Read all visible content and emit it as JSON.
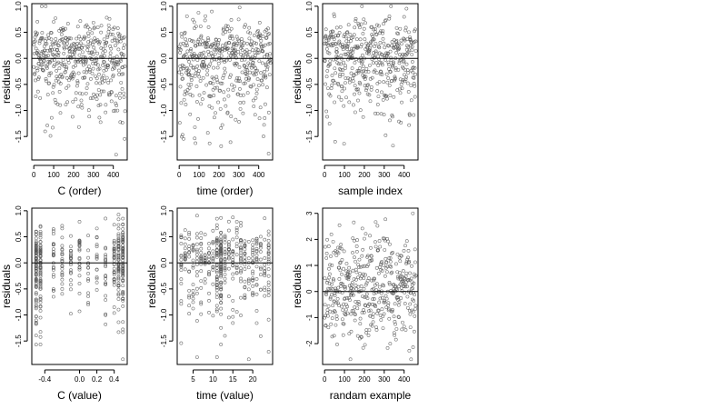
{
  "figure": {
    "layout": "2x3 grid of residual scatter plots",
    "marker": "open circle",
    "marker_color": "#555555",
    "reference_line": "horizontal line at residual 0"
  },
  "chart_data": [
    {
      "type": "scatter",
      "xlabel": "C (order)",
      "ylabel": "residuals",
      "xlim": [
        -10,
        470
      ],
      "ylim": [
        -1.95,
        1.05
      ],
      "xticks": [
        0,
        100,
        200,
        300,
        400
      ],
      "xtick_labels": [
        "0",
        "100",
        "200",
        "300",
        "400"
      ],
      "yticks": [
        1.0,
        0.5,
        0.0,
        -0.5,
        -1.0,
        -1.5
      ],
      "ytick_labels": [
        "1.0",
        "0.5",
        "0.0",
        "-0.5",
        "-1.0",
        "-1.5"
      ],
      "hline": 0,
      "x_pattern": "sequential index",
      "n_points": 460,
      "y_distribution": {
        "kind": "skewed",
        "range": [
          -1.85,
          1.0
        ]
      },
      "seed": 11
    },
    {
      "type": "scatter",
      "xlabel": "time (order)",
      "ylabel": "residuals",
      "xlim": [
        -10,
        470
      ],
      "ylim": [
        -1.95,
        1.05
      ],
      "xticks": [
        0,
        100,
        200,
        300,
        400
      ],
      "xtick_labels": [
        "0",
        "100",
        "200",
        "300",
        "400"
      ],
      "yticks": [
        1.0,
        0.5,
        0.0,
        -0.5,
        -1.0,
        -1.5
      ],
      "ytick_labels": [
        "1.0",
        "0.5",
        "0.0",
        "-0.5",
        "-1.0",
        "-1.5"
      ],
      "hline": 0,
      "x_pattern": "sequential index",
      "n_points": 460,
      "y_distribution": {
        "kind": "skewed",
        "range": [
          -1.85,
          1.0
        ]
      },
      "seed": 23
    },
    {
      "type": "scatter",
      "xlabel": "sample index",
      "ylabel": "residuals",
      "xlim": [
        -10,
        470
      ],
      "ylim": [
        -1.95,
        1.05
      ],
      "xticks": [
        0,
        100,
        200,
        300,
        400
      ],
      "xtick_labels": [
        "0",
        "100",
        "200",
        "300",
        "400"
      ],
      "yticks": [
        1.0,
        0.5,
        0.0,
        -0.5,
        -1.0,
        -1.5
      ],
      "ytick_labels": [
        "1.0",
        "0.5",
        "0.0",
        "-0.5",
        "-1.0",
        "-1.5"
      ],
      "hline": 0,
      "x_pattern": "sequential index",
      "n_points": 460,
      "y_distribution": {
        "kind": "skewed",
        "range": [
          -1.85,
          1.0
        ]
      },
      "seed": 37
    },
    {
      "type": "scatter",
      "xlabel": "C (value)",
      "ylabel": "residuals",
      "xlim": [
        -0.55,
        0.55
      ],
      "ylim": [
        -1.95,
        1.05
      ],
      "xticks": [
        -0.4,
        0.0,
        0.2,
        0.4
      ],
      "xtick_labels": [
        "-0.4",
        "0.0",
        "0.2",
        "0.4"
      ],
      "yticks": [
        1.0,
        0.5,
        0.0,
        -0.5,
        -1.0,
        -1.5
      ],
      "ytick_labels": [
        "1.0",
        "0.5",
        "0.0",
        "-0.5",
        "-1.0",
        "-1.5"
      ],
      "hline": 0,
      "x_pattern": "discrete values",
      "x_levels": [
        -0.5,
        -0.45,
        -0.3,
        -0.2,
        -0.1,
        0.0,
        0.1,
        0.2,
        0.3,
        0.4,
        0.45,
        0.5
      ],
      "x_level_weights": [
        4,
        3,
        1,
        1,
        1,
        1,
        1,
        1,
        1,
        2,
        3,
        3
      ],
      "n_points": 460,
      "y_distribution": {
        "kind": "skewed",
        "range": [
          -1.85,
          1.0
        ]
      },
      "seed": 41
    },
    {
      "type": "scatter",
      "xlabel": "time (value)",
      "ylabel": "residuals",
      "xlim": [
        1,
        25
      ],
      "ylim": [
        -1.95,
        1.05
      ],
      "xticks": [
        5,
        10,
        15,
        20
      ],
      "xtick_labels": [
        "5",
        "10",
        "15",
        "20"
      ],
      "yticks": [
        1.0,
        0.5,
        0.0,
        -0.5,
        -1.0,
        -1.5
      ],
      "ytick_labels": [
        "1.0",
        "0.5",
        "0.0",
        "-0.5",
        "-1.0",
        "-1.5"
      ],
      "hline": 0,
      "x_pattern": "discrete values",
      "x_levels": [
        2,
        3,
        4,
        5,
        6,
        7,
        8,
        9,
        10,
        11,
        12,
        13,
        14,
        15,
        16,
        17,
        18,
        19,
        20,
        21,
        22,
        23,
        24
      ],
      "x_level_weights": [
        2,
        1,
        1,
        1,
        1,
        1,
        1,
        1,
        1,
        3,
        4,
        1,
        1,
        1,
        1,
        1,
        1,
        1,
        1,
        1,
        1,
        1,
        2
      ],
      "n_points": 460,
      "y_distribution": {
        "kind": "skewed",
        "range": [
          -1.85,
          1.0
        ]
      },
      "seed": 53
    },
    {
      "type": "scatter",
      "xlabel": "randam example",
      "ylabel": "residuals",
      "xlim": [
        -10,
        470
      ],
      "ylim": [
        -2.8,
        3.2
      ],
      "xticks": [
        0,
        100,
        200,
        300,
        400
      ],
      "xtick_labels": [
        "0",
        "100",
        "200",
        "300",
        "400"
      ],
      "yticks": [
        3,
        2,
        1,
        0,
        -1,
        -2
      ],
      "ytick_labels": [
        "3",
        "2",
        "1",
        "0",
        "-1",
        "-2"
      ],
      "hline": 0,
      "x_pattern": "sequential index",
      "n_points": 460,
      "y_distribution": {
        "kind": "normal",
        "sd": 1.0,
        "range": [
          -2.6,
          3.0
        ]
      },
      "seed": 67
    }
  ]
}
